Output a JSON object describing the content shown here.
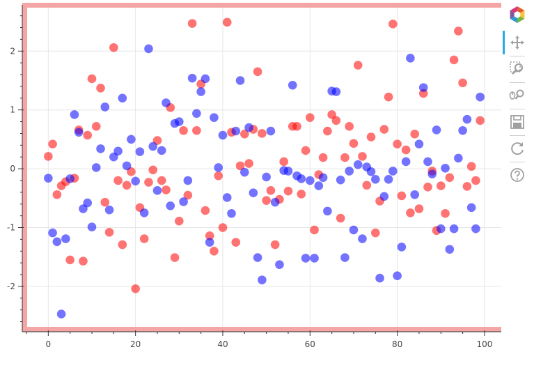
{
  "chart_data": {
    "type": "scatter",
    "title": "",
    "xlabel": "",
    "ylabel": "",
    "xlim": [
      -5,
      104
    ],
    "ylim": [
      -2.7,
      2.75
    ],
    "x_ticks": [
      0,
      20,
      40,
      60,
      80,
      100
    ],
    "y_ticks": [
      -2,
      -1,
      0,
      1,
      2
    ],
    "grid": true,
    "legend": "none",
    "border_color": "#f4a6a6",
    "series": [
      {
        "color": "#ff0000",
        "points": [
          [
            0,
            0.21
          ],
          [
            1,
            0.42
          ],
          [
            2,
            -0.44
          ],
          [
            3,
            -0.29
          ],
          [
            4,
            -0.22
          ],
          [
            5,
            -1.55
          ],
          [
            6,
            -0.16
          ],
          [
            7,
            0.66
          ],
          [
            8,
            -1.57
          ],
          [
            9,
            0.57
          ],
          [
            10,
            1.53
          ],
          [
            11,
            0.72
          ],
          [
            12,
            1.37
          ],
          [
            13,
            -0.57
          ],
          [
            14,
            -1.08
          ],
          [
            15,
            2.06
          ],
          [
            16,
            -0.2
          ],
          [
            17,
            -1.29
          ],
          [
            18,
            -0.28
          ],
          [
            19,
            -0.05
          ],
          [
            20,
            -2.04
          ],
          [
            21,
            -0.66
          ],
          [
            22,
            -1.19
          ],
          [
            23,
            -0.23
          ],
          [
            24,
            -0.02
          ],
          [
            25,
            0.48
          ],
          [
            26,
            -0.2
          ],
          [
            27,
            -0.36
          ],
          [
            28,
            1.04
          ],
          [
            29,
            -1.51
          ],
          [
            30,
            -0.89
          ],
          [
            31,
            0.65
          ],
          [
            32,
            -0.45
          ],
          [
            33,
            2.47
          ],
          [
            34,
            0.65
          ],
          [
            35,
            1.44
          ],
          [
            36,
            -0.71
          ],
          [
            37,
            -1.14
          ],
          [
            38,
            -1.4
          ],
          [
            39,
            -0.12
          ],
          [
            40,
            -1.0
          ],
          [
            41,
            2.49
          ],
          [
            42,
            0.62
          ],
          [
            43,
            -1.25
          ],
          [
            44,
            0.05
          ],
          [
            45,
            0.59
          ],
          [
            46,
            0.09
          ],
          [
            47,
            0.67
          ],
          [
            48,
            1.65
          ],
          [
            49,
            0.6
          ],
          [
            50,
            -0.54
          ],
          [
            51,
            -0.37
          ],
          [
            52,
            -1.29
          ],
          [
            53,
            -0.52
          ],
          [
            54,
            0.12
          ],
          [
            55,
            -0.38
          ],
          [
            56,
            0.72
          ],
          [
            57,
            0.72
          ],
          [
            58,
            -0.43
          ],
          [
            59,
            0.31
          ],
          [
            60,
            0.87
          ],
          [
            61,
            -1.04
          ],
          [
            62,
            -0.1
          ],
          [
            63,
            0.19
          ],
          [
            64,
            0.64
          ],
          [
            65,
            0.92
          ],
          [
            66,
            0.82
          ],
          [
            67,
            -0.84
          ],
          [
            68,
            0.19
          ],
          [
            69,
            0.72
          ],
          [
            70,
            0.43
          ],
          [
            71,
            1.76
          ],
          [
            72,
            0.21
          ],
          [
            73,
            -0.28
          ],
          [
            74,
            0.54
          ],
          [
            75,
            -1.09
          ],
          [
            76,
            -0.55
          ],
          [
            77,
            0.67
          ],
          [
            78,
            1.22
          ],
          [
            79,
            2.46
          ],
          [
            80,
            0.42
          ],
          [
            81,
            -0.46
          ],
          [
            82,
            0.32
          ],
          [
            83,
            -0.75
          ],
          [
            84,
            0.59
          ],
          [
            85,
            -0.68
          ],
          [
            86,
            1.28
          ],
          [
            87,
            -0.31
          ],
          [
            88,
            -0.04
          ],
          [
            89,
            -1.05
          ],
          [
            90,
            -0.29
          ],
          [
            91,
            -0.76
          ],
          [
            92,
            -0.15
          ],
          [
            93,
            1.85
          ],
          [
            94,
            2.34
          ],
          [
            95,
            1.46
          ],
          [
            96,
            -0.3
          ],
          [
            97,
            0.04
          ],
          [
            98,
            -0.2
          ],
          [
            99,
            0.82
          ]
        ]
      },
      {
        "color": "#0000ff",
        "points": [
          [
            0,
            -0.16
          ],
          [
            1,
            -1.09
          ],
          [
            2,
            -1.24
          ],
          [
            3,
            -2.47
          ],
          [
            4,
            -1.19
          ],
          [
            5,
            -0.17
          ],
          [
            6,
            0.92
          ],
          [
            7,
            0.62
          ],
          [
            8,
            -0.68
          ],
          [
            9,
            -0.58
          ],
          [
            10,
            -0.99
          ],
          [
            11,
            0.02
          ],
          [
            12,
            0.34
          ],
          [
            13,
            1.05
          ],
          [
            14,
            -0.7
          ],
          [
            15,
            0.2
          ],
          [
            16,
            0.3
          ],
          [
            17,
            1.2
          ],
          [
            18,
            0.05
          ],
          [
            19,
            0.5
          ],
          [
            20,
            -0.21
          ],
          [
            21,
            0.29
          ],
          [
            22,
            -0.75
          ],
          [
            23,
            2.04
          ],
          [
            24,
            0.38
          ],
          [
            25,
            -0.37
          ],
          [
            26,
            0.31
          ],
          [
            27,
            1.12
          ],
          [
            28,
            -0.63
          ],
          [
            29,
            0.77
          ],
          [
            30,
            0.8
          ],
          [
            31,
            -0.56
          ],
          [
            32,
            -0.2
          ],
          [
            33,
            1.54
          ],
          [
            34,
            0.94
          ],
          [
            35,
            1.31
          ],
          [
            36,
            1.53
          ],
          [
            37,
            -1.25
          ],
          [
            38,
            0.87
          ],
          [
            39,
            0.02
          ],
          [
            40,
            0.57
          ],
          [
            41,
            -0.49
          ],
          [
            42,
            -0.76
          ],
          [
            43,
            0.64
          ],
          [
            44,
            1.5
          ],
          [
            45,
            -0.06
          ],
          [
            46,
            0.7
          ],
          [
            47,
            -0.41
          ],
          [
            48,
            -1.51
          ],
          [
            49,
            -1.89
          ],
          [
            50,
            -0.14
          ],
          [
            51,
            0.64
          ],
          [
            52,
            -0.57
          ],
          [
            53,
            -1.63
          ],
          [
            54,
            -0.03
          ],
          [
            55,
            -0.04
          ],
          [
            56,
            1.42
          ],
          [
            57,
            -0.12
          ],
          [
            58,
            -0.17
          ],
          [
            59,
            -1.52
          ],
          [
            60,
            -0.2
          ],
          [
            61,
            -1.52
          ],
          [
            62,
            -0.29
          ],
          [
            63,
            -0.15
          ],
          [
            64,
            -0.72
          ],
          [
            65,
            1.32
          ],
          [
            66,
            1.31
          ],
          [
            67,
            -0.19
          ],
          [
            68,
            -1.51
          ],
          [
            69,
            -0.04
          ],
          [
            70,
            -1.04
          ],
          [
            71,
            0.07
          ],
          [
            72,
            -1.19
          ],
          [
            73,
            0.03
          ],
          [
            74,
            -0.05
          ],
          [
            75,
            -0.18
          ],
          [
            76,
            -1.86
          ],
          [
            77,
            -0.47
          ],
          [
            78,
            -0.18
          ],
          [
            79,
            -0.04
          ],
          [
            80,
            -1.82
          ],
          [
            81,
            -1.33
          ],
          [
            82,
            0.12
          ],
          [
            83,
            1.88
          ],
          [
            84,
            -0.44
          ],
          [
            85,
            0.42
          ],
          [
            86,
            1.38
          ],
          [
            87,
            0.12
          ],
          [
            88,
            -0.09
          ],
          [
            89,
            0.66
          ],
          [
            90,
            -1.02
          ],
          [
            91,
            0.01
          ],
          [
            92,
            -1.37
          ],
          [
            93,
            -1.02
          ],
          [
            94,
            0.18
          ],
          [
            95,
            0.65
          ],
          [
            96,
            0.84
          ],
          [
            97,
            -0.66
          ],
          [
            98,
            -1.02
          ],
          [
            99,
            1.22
          ]
        ]
      }
    ]
  },
  "toolbar": {
    "tools": [
      {
        "icon": "bokeh-logo-icon"
      },
      {
        "icon": "pan-icon",
        "active": true
      },
      {
        "icon": "box-zoom-icon"
      },
      {
        "icon": "wheel-zoom-icon"
      },
      {
        "icon": "save-icon"
      },
      {
        "icon": "reset-icon"
      },
      {
        "icon": "help-icon"
      }
    ],
    "active_color": "#26aae1",
    "logo_colors": [
      "#e25f2d",
      "#f7c33b",
      "#76b744",
      "#2f9bd4",
      "#7e57a0",
      "#d8377e"
    ]
  }
}
